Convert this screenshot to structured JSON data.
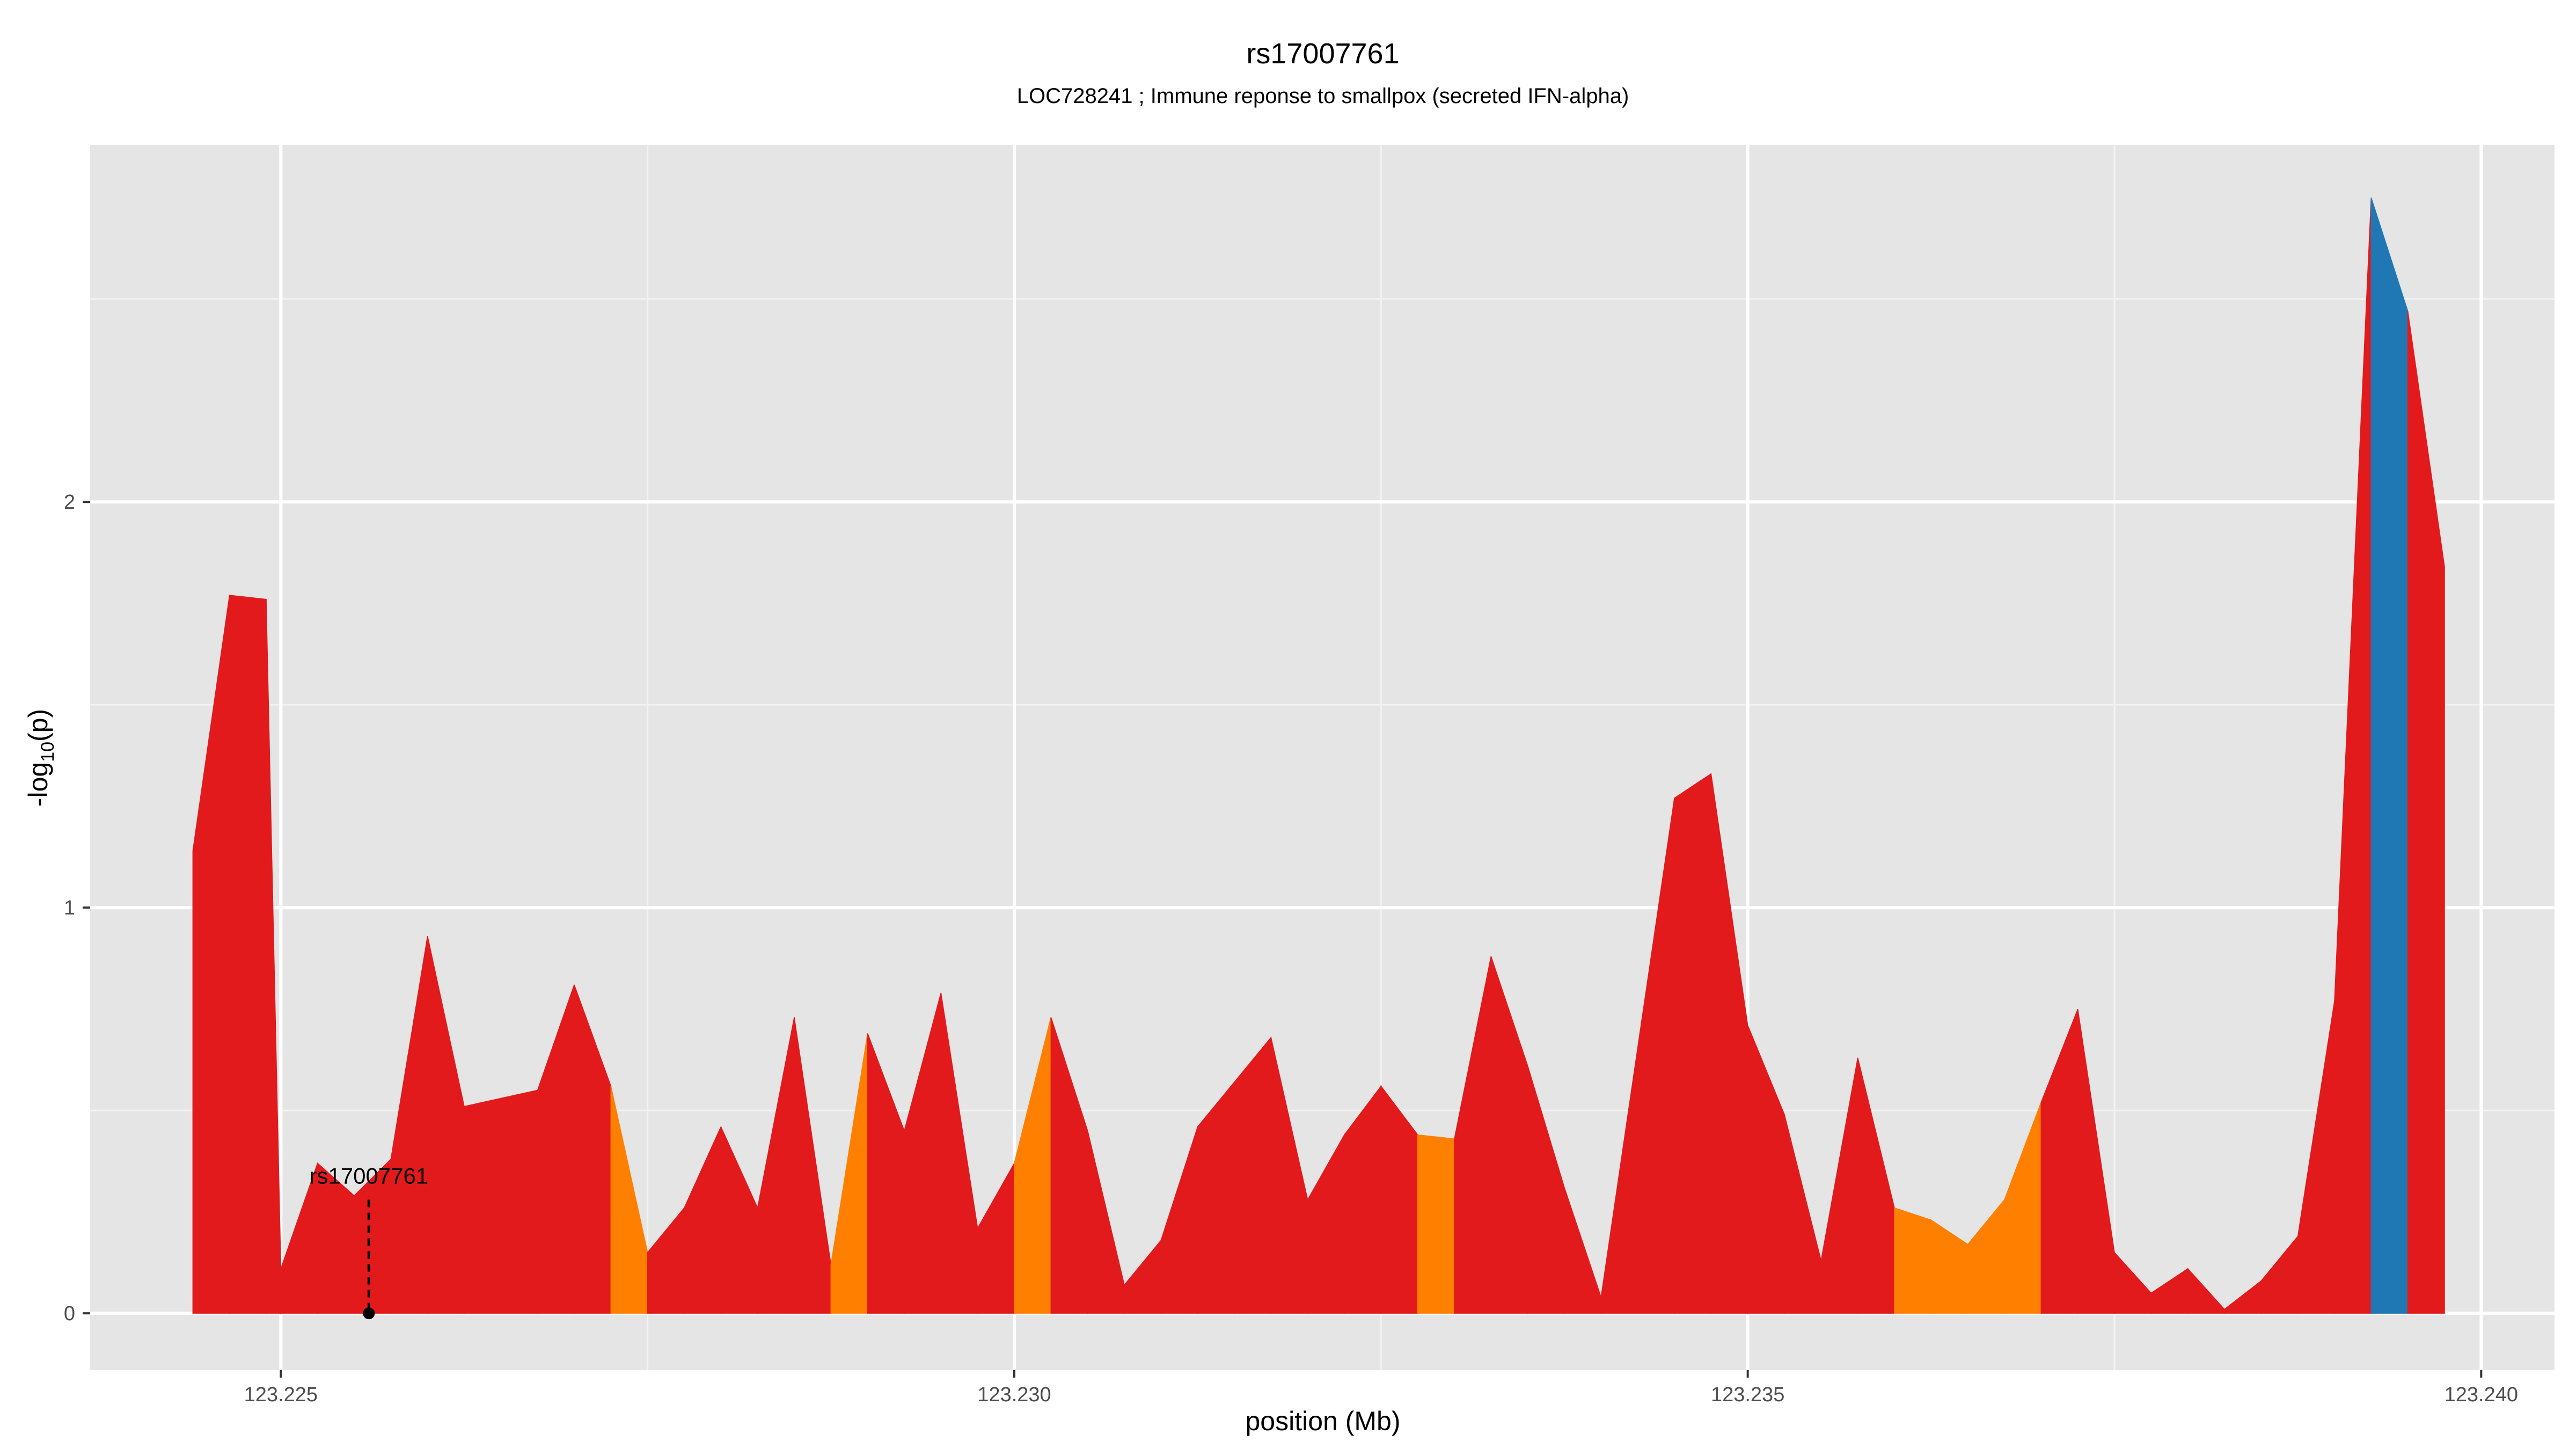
{
  "chart_data": {
    "type": "area",
    "title": "rs17007761",
    "subtitle": "LOC728241 ; Immune reponse to smallpox (secreted IFN-alpha)",
    "xlabel": "position (Mb)",
    "ylabel_main": "-log",
    "ylabel_sub": "10",
    "ylabel_tail": "(p)",
    "xlim": [
      123.2237,
      123.2405
    ],
    "ylim": [
      -0.14,
      2.88
    ],
    "x_ticks": [
      {
        "value": 123.225,
        "label": "123.225"
      },
      {
        "value": 123.23,
        "label": "123.230"
      },
      {
        "value": 123.235,
        "label": "123.235"
      },
      {
        "value": 123.24,
        "label": "123.240"
      }
    ],
    "x_minor_ticks": [
      123.2275,
      123.2325,
      123.2375
    ],
    "y_ticks": [
      {
        "value": 0,
        "label": "0"
      },
      {
        "value": 1,
        "label": "1"
      },
      {
        "value": 2,
        "label": "2"
      }
    ],
    "y_minor_ticks": [
      0.5,
      1.5,
      2.5
    ],
    "grid": true,
    "colors": {
      "red": "#e31a1c",
      "orange": "#ff7f00",
      "blue": "#1f78b4",
      "panel": "#e5e5e5",
      "grid_major": "#ffffff",
      "grid_minor": "#f2f2f2"
    },
    "points": [
      {
        "x": 123.2244,
        "y": 1.14,
        "c": "red"
      },
      {
        "x": 123.22465,
        "y": 1.77,
        "c": "red"
      },
      {
        "x": 123.2249,
        "y": 1.76,
        "c": "red"
      },
      {
        "x": 123.225,
        "y": 0.11,
        "c": "red"
      },
      {
        "x": 123.22525,
        "y": 0.37,
        "c": "red"
      },
      {
        "x": 123.2255,
        "y": 0.29,
        "c": "red"
      },
      {
        "x": 123.22575,
        "y": 0.38,
        "c": "red"
      },
      {
        "x": 123.226,
        "y": 0.93,
        "c": "red"
      },
      {
        "x": 123.22625,
        "y": 0.51,
        "c": "red"
      },
      {
        "x": 123.2265,
        "y": 0.53,
        "c": "red"
      },
      {
        "x": 123.22675,
        "y": 0.55,
        "c": "red"
      },
      {
        "x": 123.227,
        "y": 0.81,
        "c": "red"
      },
      {
        "x": 123.22725,
        "y": 0.56,
        "c": "orange"
      },
      {
        "x": 123.2275,
        "y": 0.15,
        "c": "red"
      },
      {
        "x": 123.22775,
        "y": 0.26,
        "c": "red"
      },
      {
        "x": 123.228,
        "y": 0.46,
        "c": "red"
      },
      {
        "x": 123.22825,
        "y": 0.26,
        "c": "red"
      },
      {
        "x": 123.2285,
        "y": 0.73,
        "c": "red"
      },
      {
        "x": 123.22875,
        "y": 0.12,
        "c": "orange"
      },
      {
        "x": 123.229,
        "y": 0.69,
        "c": "red"
      },
      {
        "x": 123.22925,
        "y": 0.45,
        "c": "red"
      },
      {
        "x": 123.2295,
        "y": 0.79,
        "c": "red"
      },
      {
        "x": 123.22975,
        "y": 0.21,
        "c": "red"
      },
      {
        "x": 123.23,
        "y": 0.37,
        "c": "orange"
      },
      {
        "x": 123.23025,
        "y": 0.73,
        "c": "red"
      },
      {
        "x": 123.2305,
        "y": 0.45,
        "c": "red"
      },
      {
        "x": 123.23075,
        "y": 0.07,
        "c": "red"
      },
      {
        "x": 123.231,
        "y": 0.18,
        "c": "red"
      },
      {
        "x": 123.23125,
        "y": 0.46,
        "c": "red"
      },
      {
        "x": 123.2315,
        "y": 0.57,
        "c": "red"
      },
      {
        "x": 123.23175,
        "y": 0.68,
        "c": "red"
      },
      {
        "x": 123.232,
        "y": 0.28,
        "c": "red"
      },
      {
        "x": 123.23225,
        "y": 0.44,
        "c": "red"
      },
      {
        "x": 123.2325,
        "y": 0.56,
        "c": "red"
      },
      {
        "x": 123.23275,
        "y": 0.44,
        "c": "orange"
      },
      {
        "x": 123.233,
        "y": 0.43,
        "c": "red"
      },
      {
        "x": 123.23325,
        "y": 0.88,
        "c": "red"
      },
      {
        "x": 123.2335,
        "y": 0.61,
        "c": "red"
      },
      {
        "x": 123.23375,
        "y": 0.31,
        "c": "red"
      },
      {
        "x": 123.234,
        "y": 0.04,
        "c": "red"
      },
      {
        "x": 123.2345,
        "y": 1.27,
        "c": "red"
      },
      {
        "x": 123.23475,
        "y": 1.33,
        "c": "red"
      },
      {
        "x": 123.235,
        "y": 0.71,
        "c": "red"
      },
      {
        "x": 123.23525,
        "y": 0.49,
        "c": "red"
      },
      {
        "x": 123.2355,
        "y": 0.13,
        "c": "red"
      },
      {
        "x": 123.23575,
        "y": 0.63,
        "c": "red"
      },
      {
        "x": 123.236,
        "y": 0.26,
        "c": "orange"
      },
      {
        "x": 123.23625,
        "y": 0.23,
        "c": "orange"
      },
      {
        "x": 123.2365,
        "y": 0.17,
        "c": "orange"
      },
      {
        "x": 123.23675,
        "y": 0.28,
        "c": "orange"
      },
      {
        "x": 123.237,
        "y": 0.52,
        "c": "red"
      },
      {
        "x": 123.23725,
        "y": 0.75,
        "c": "red"
      },
      {
        "x": 123.2375,
        "y": 0.15,
        "c": "red"
      },
      {
        "x": 123.23775,
        "y": 0.05,
        "c": "red"
      },
      {
        "x": 123.238,
        "y": 0.11,
        "c": "red"
      },
      {
        "x": 123.23825,
        "y": 0.01,
        "c": "red"
      },
      {
        "x": 123.2385,
        "y": 0.08,
        "c": "red"
      },
      {
        "x": 123.23875,
        "y": 0.19,
        "c": "red"
      },
      {
        "x": 123.239,
        "y": 0.77,
        "c": "red"
      },
      {
        "x": 123.23925,
        "y": 2.75,
        "c": "blue"
      },
      {
        "x": 123.2395,
        "y": 2.47,
        "c": "red"
      },
      {
        "x": 123.23975,
        "y": 1.84,
        "c": "red"
      }
    ],
    "annotation": {
      "label": "rs17007761",
      "x": 123.2256,
      "y": 0,
      "line_top": 0.28
    }
  }
}
